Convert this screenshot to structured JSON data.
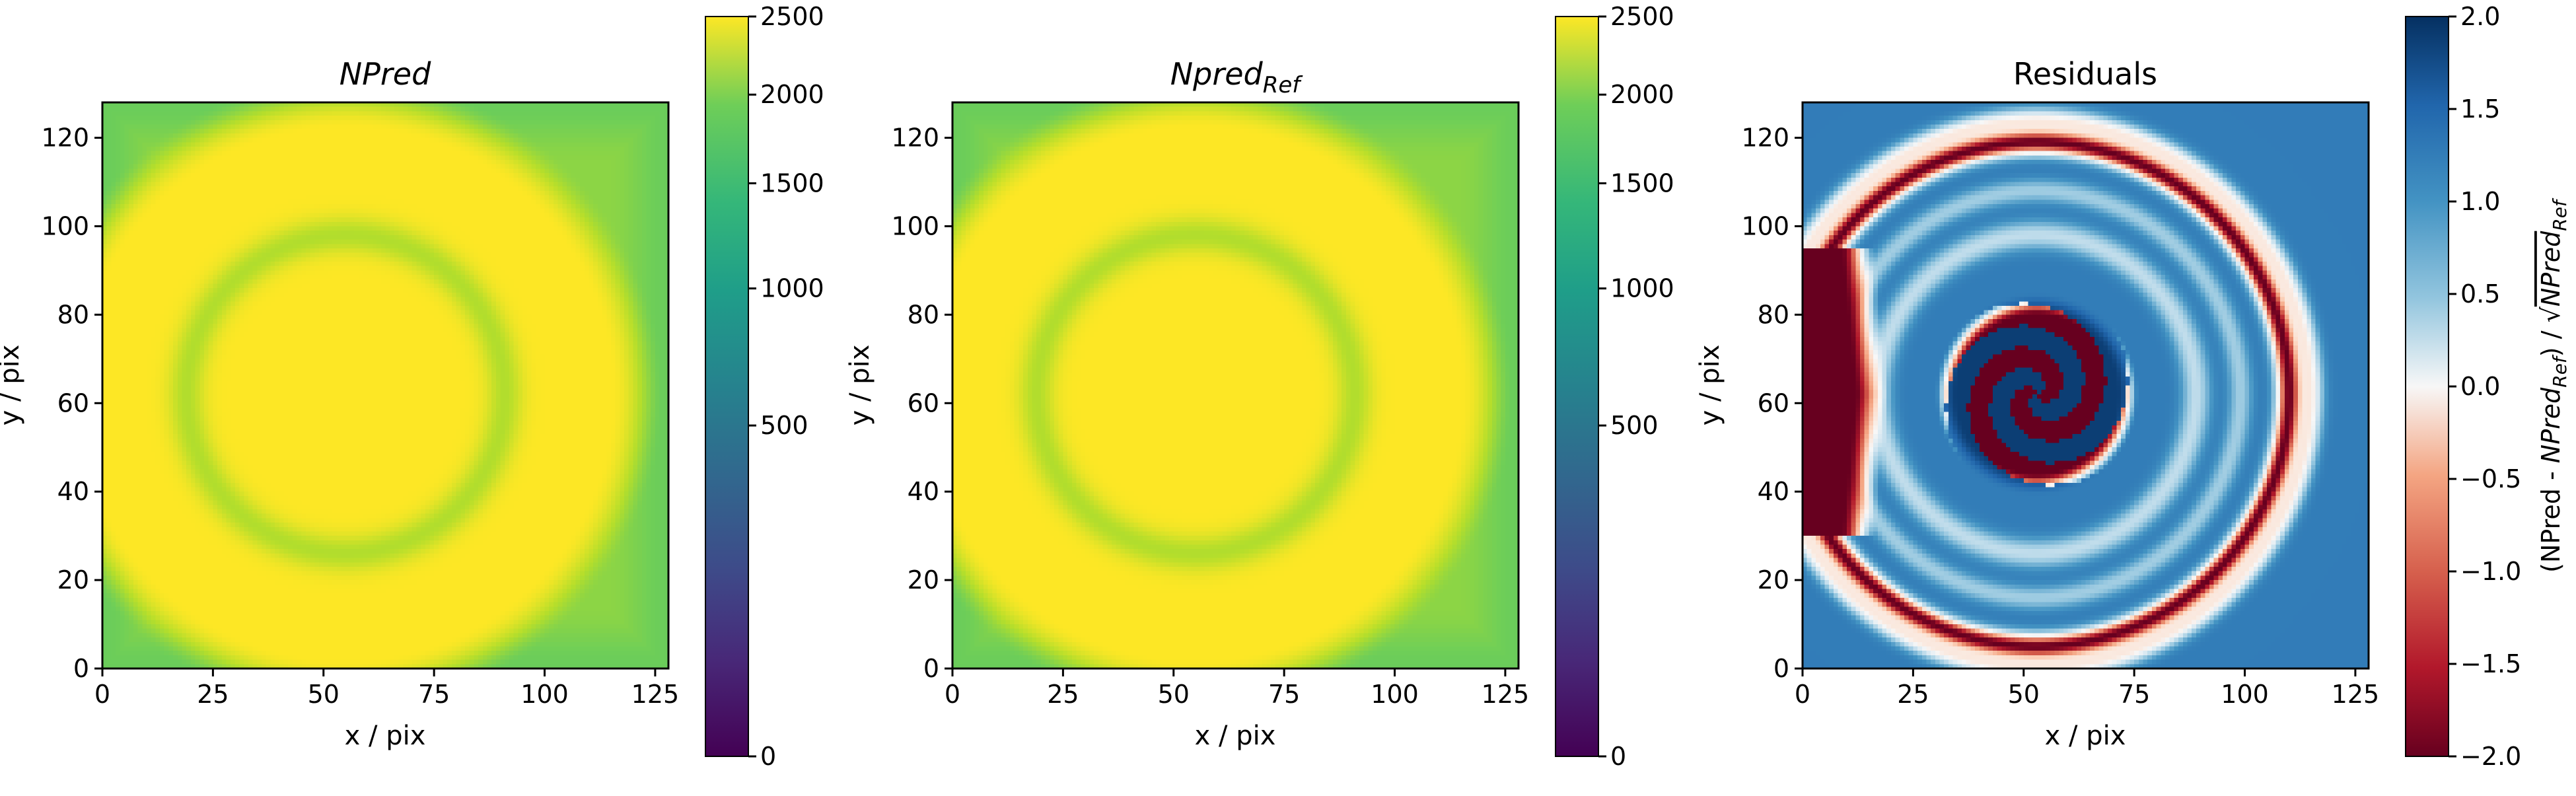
{
  "chart_data": [
    {
      "type": "heatmap",
      "title": "NPred",
      "xlabel": "x / pix",
      "ylabel": "y / pix",
      "xlim": [
        0,
        128
      ],
      "ylim": [
        0,
        128
      ],
      "x_ticks": [
        0,
        25,
        50,
        75,
        100,
        125
      ],
      "y_ticks": [
        0,
        20,
        40,
        60,
        80,
        100,
        120
      ],
      "colormap": "viridis",
      "colorbar": {
        "ticks": [
          0,
          500,
          1000,
          1500,
          2000,
          2500
        ],
        "tick_labels": [
          "0",
          "500",
          "1000",
          "1500",
          "2000",
          "2500"
        ],
        "range": [
          0,
          2500
        ],
        "scale": "sqrt",
        "label": ""
      },
      "features": {
        "background_level": 1700,
        "big_ring_level": 2500,
        "inner_ring_level": 1950,
        "center_level": 2500,
        "center_xy": [
          55,
          62
        ]
      }
    },
    {
      "type": "heatmap",
      "title_main": "Npred",
      "title_sub": "Ref",
      "xlabel": "x / pix",
      "ylabel": "y / pix",
      "xlim": [
        0,
        128
      ],
      "ylim": [
        0,
        128
      ],
      "x_ticks": [
        0,
        25,
        50,
        75,
        100,
        125
      ],
      "y_ticks": [
        0,
        20,
        40,
        60,
        80,
        100,
        120
      ],
      "colormap": "viridis",
      "colorbar": {
        "ticks": [
          0,
          500,
          1000,
          1500,
          2000,
          2500
        ],
        "tick_labels": [
          "0",
          "500",
          "1000",
          "1500",
          "2000",
          "2500"
        ],
        "range": [
          0,
          2500
        ],
        "scale": "sqrt",
        "label": ""
      },
      "features": {
        "background_level": 1700,
        "big_ring_level": 2500,
        "inner_ring_level": 1950,
        "center_level": 2500,
        "center_xy": [
          55,
          62
        ]
      }
    },
    {
      "type": "heatmap",
      "title": "Residuals",
      "xlabel": "x / pix",
      "ylabel": "y / pix",
      "xlim": [
        0,
        128
      ],
      "ylim": [
        0,
        128
      ],
      "x_ticks": [
        0,
        25,
        50,
        75,
        100,
        125
      ],
      "y_ticks": [
        0,
        20,
        40,
        60,
        80,
        100,
        120
      ],
      "colormap": "RdBu",
      "colorbar": {
        "ticks": [
          -2.0,
          -1.5,
          -1.0,
          -0.5,
          0.0,
          0.5,
          1.0,
          1.5,
          2.0
        ],
        "tick_labels": [
          "−2.0",
          "−1.5",
          "−1.0",
          "−0.5",
          "0.0",
          "0.5",
          "1.0",
          "1.5",
          "2.0"
        ],
        "range": [
          -2.0,
          2.0
        ],
        "label_prefix": "(NPred - ",
        "label_npred_main": "NPred",
        "label_npred_sub": "Ref",
        "label_mid": ") / ",
        "label_root_main": "NPred",
        "label_root_sub": "Ref"
      },
      "features": {
        "background_level": 1.4,
        "outer_ring_level": -2.0,
        "left_wedge_level": -2.0,
        "spiral_center_xy": [
          53,
          62
        ],
        "spiral_arms": 2
      }
    }
  ]
}
